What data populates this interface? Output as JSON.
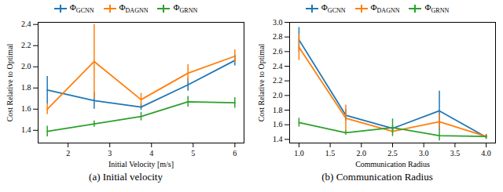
{
  "chart_data": [
    {
      "type": "line",
      "title": "(a) Initial velocity",
      "x_label": "Initial Velocity [m/s]",
      "y_label": "Cost Relative to Optimal",
      "x": [
        1.5,
        2.625,
        3.75,
        4.875,
        6
      ],
      "xlim": [
        1.28,
        6.22
      ],
      "xticks": [
        2,
        3,
        4,
        5,
        6
      ],
      "ylim": [
        1.28,
        2.42
      ],
      "yticks": [
        1.4,
        1.6,
        1.8,
        {
          "value": 2,
          "label": "2.0"
        },
        2.2,
        2.4
      ],
      "legend": "top",
      "grid": false,
      "series": [
        {
          "name": "ΦGCNN",
          "color": "#1f77b4",
          "values": [
            1.78,
            1.68,
            1.62,
            1.83,
            2.06
          ],
          "errors": [
            0.13,
            0.08,
            0.03,
            0.06,
            0.05
          ]
        },
        {
          "name": "ΦDAGNN",
          "color": "#ff7f0e",
          "values": [
            1.6,
            2.05,
            1.69,
            1.94,
            2.1
          ],
          "errors": [
            0.05,
            0.35,
            0.06,
            0.08,
            0.06
          ]
        },
        {
          "name": "ΦGRNN",
          "color": "#2ca02c",
          "values": [
            1.39,
            1.46,
            1.53,
            1.67,
            1.66
          ],
          "errors": [
            0.05,
            0.03,
            0.04,
            0.05,
            0.05
          ]
        }
      ]
    },
    {
      "type": "line",
      "title": "(b) Communication Radius",
      "x_label": "Communication Radius",
      "y_label": "Cost Relative to Optimal",
      "x": [
        1.0,
        1.75,
        2.5,
        3.25,
        4.0
      ],
      "xlim": [
        0.85,
        4.15
      ],
      "xticks": [
        {
          "value": 1,
          "label": "1.0"
        },
        1.5,
        {
          "value": 2,
          "label": "2.0"
        },
        2.5,
        {
          "value": 3,
          "label": "3.0"
        },
        3.5,
        {
          "value": 4,
          "label": "4.0"
        }
      ],
      "ylim": [
        1.35,
        3.0
      ],
      "yticks": [
        1.4,
        1.6,
        1.8,
        {
          "value": 2,
          "label": "2.0"
        },
        2.2,
        2.4,
        2.6,
        2.8,
        {
          "value": 3,
          "label": "3.0"
        }
      ],
      "legend": "top",
      "grid": false,
      "series": [
        {
          "name": "ΦGCNN",
          "color": "#1f77b4",
          "values": [
            2.76,
            1.73,
            1.55,
            1.79,
            1.43
          ],
          "errors": [
            0.17,
            0.08,
            0.03,
            0.27,
            0.03
          ]
        },
        {
          "name": "ΦDAGNN",
          "color": "#ff7f0e",
          "values": [
            2.66,
            1.69,
            1.51,
            1.64,
            1.44
          ],
          "errors": [
            0.18,
            0.18,
            0.03,
            0.1,
            0.03
          ]
        },
        {
          "name": "ΦGRNN",
          "color": "#2ca02c",
          "values": [
            1.63,
            1.49,
            1.56,
            1.45,
            1.44
          ],
          "errors": [
            0.06,
            0.03,
            0.12,
            0.07,
            0.02
          ]
        }
      ]
    }
  ]
}
